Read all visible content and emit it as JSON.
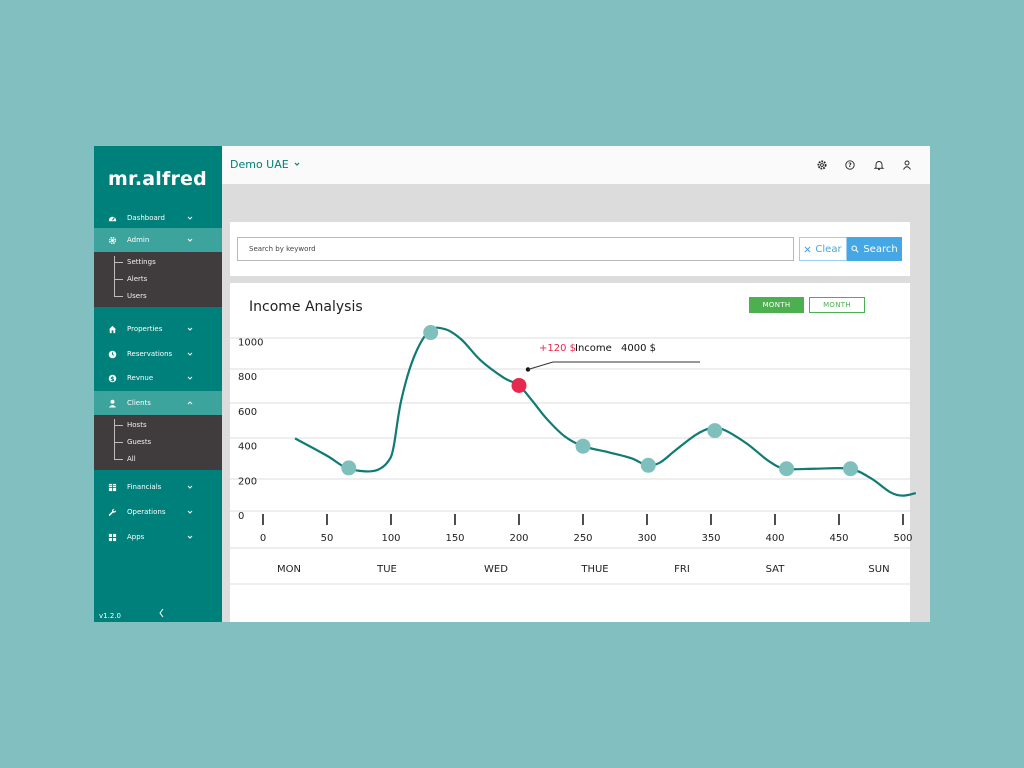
{
  "brand": {
    "name": "mr.alfred",
    "version": "v1.2.0"
  },
  "sidebar": {
    "items": [
      {
        "key": "dashboard",
        "label": "Dashboard",
        "icon": "gauge-icon",
        "expanded": false
      },
      {
        "key": "admin",
        "label": "Admin",
        "icon": "gear-icon",
        "expanded": true,
        "children": [
          "Settings",
          "Alerts",
          "Users"
        ]
      },
      {
        "key": "properties",
        "label": "Properties",
        "icon": "home-icon",
        "expanded": false
      },
      {
        "key": "reservations",
        "label": "Reservations",
        "icon": "clock-icon",
        "expanded": false
      },
      {
        "key": "revenue",
        "label": "Revnue",
        "icon": "dollar-icon",
        "expanded": false
      },
      {
        "key": "clients",
        "label": "Clients",
        "icon": "user-icon",
        "expanded": true,
        "children": [
          "Hosts",
          "Guests",
          "All"
        ]
      },
      {
        "key": "financials",
        "label": "Financials",
        "icon": "grid-icon",
        "expanded": false
      },
      {
        "key": "operations",
        "label": "Operations",
        "icon": "wrench-icon",
        "expanded": false
      },
      {
        "key": "apps",
        "label": "Apps",
        "icon": "apps-icon",
        "expanded": false
      }
    ]
  },
  "topbar": {
    "organization": "Demo UAE",
    "icons": [
      "gear-icon",
      "help-icon",
      "bell-icon",
      "user-icon"
    ]
  },
  "search": {
    "placeholder": "Search by keyword",
    "value": "",
    "clear_label": "Clear",
    "search_label": "Search"
  },
  "chart_panel": {
    "title": "Income Analysis",
    "toggles": [
      "MONTH",
      "MONTH"
    ]
  },
  "colors": {
    "sidebar": "#00807a",
    "sidebar_active": "#3da39d",
    "submenu": "#403b3c",
    "line": "#0f7b73",
    "marker": "#7fc0bc",
    "highlight": "#e8294f",
    "toggle_green": "#4caf50",
    "search_blue": "#45a7e4"
  },
  "chart_data": {
    "type": "line",
    "title": "Income Analysis",
    "xlabel": "",
    "ylabel": "",
    "y_ticks": [
      0,
      200,
      400,
      600,
      800,
      1000
    ],
    "x_ticks": [
      0,
      50,
      100,
      150,
      200,
      250,
      300,
      350,
      400,
      450,
      500
    ],
    "day_labels": [
      "MON",
      "TUE",
      "WED",
      "THUE",
      "FRI",
      "SAT",
      "SUN"
    ],
    "xlim": [
      0,
      500
    ],
    "ylim": [
      0,
      1100
    ],
    "grid": true,
    "series": [
      {
        "curve": [
          [
            25,
            430
          ],
          [
            50,
            330
          ],
          [
            65,
            260
          ],
          [
            80,
            240
          ],
          [
            90,
            250
          ],
          [
            98,
            300
          ],
          [
            102,
            380
          ],
          [
            108,
            650
          ],
          [
            118,
            900
          ],
          [
            130,
            1050
          ],
          [
            142,
            1060
          ],
          [
            155,
            1000
          ],
          [
            170,
            880
          ],
          [
            188,
            780
          ],
          [
            200,
            735
          ],
          [
            210,
            650
          ],
          [
            222,
            540
          ],
          [
            236,
            440
          ],
          [
            250,
            385
          ],
          [
            270,
            350
          ],
          [
            288,
            315
          ],
          [
            300,
            275
          ],
          [
            310,
            290
          ],
          [
            322,
            360
          ],
          [
            338,
            450
          ],
          [
            350,
            490
          ],
          [
            360,
            480
          ],
          [
            378,
            400
          ],
          [
            395,
            300
          ],
          [
            408,
            255
          ],
          [
            430,
            255
          ],
          [
            458,
            255
          ],
          [
            475,
            200
          ],
          [
            490,
            120
          ],
          [
            500,
            100
          ],
          [
            510,
            115
          ]
        ],
        "markers": [
          [
            67,
            260
          ],
          [
            131,
            1040
          ],
          [
            250,
            385
          ],
          [
            301,
            275
          ],
          [
            353,
            475
          ],
          [
            409,
            255
          ],
          [
            459,
            255
          ]
        ],
        "highlight": {
          "x": 200,
          "y": 735
        }
      }
    ],
    "annotation": {
      "delta": "+120 $",
      "label": "Income",
      "value": "4000 $"
    }
  }
}
